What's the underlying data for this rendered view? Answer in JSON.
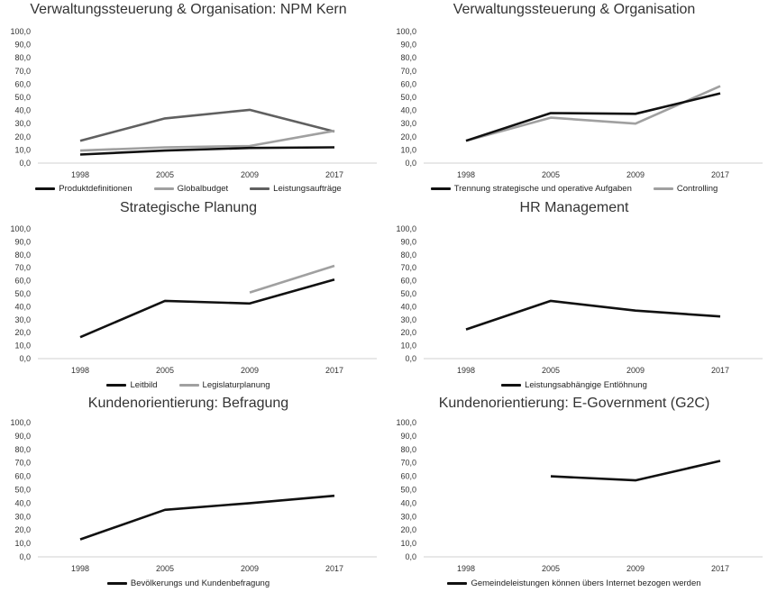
{
  "colors": {
    "black": "#111111",
    "lightgray": "#a0a0a0",
    "darkgray": "#606060",
    "axis": "#d0d0d0"
  },
  "chart_data": [
    {
      "type": "line",
      "title": "Verwaltungssteuerung & Organisation: NPM Kern",
      "categories": [
        "1998",
        "2005",
        "2009",
        "2017"
      ],
      "ylim": [
        0,
        100
      ],
      "yticks": [
        "0,0",
        "10,0",
        "20,0",
        "30,0",
        "40,0",
        "50,0",
        "60,0",
        "70,0",
        "80,0",
        "90,0",
        "100,0"
      ],
      "legend_position": "bottom",
      "series": [
        {
          "name": "Produktdefinitionen",
          "color": "#111111",
          "values": [
            6.5,
            9.5,
            11.5,
            12.0
          ]
        },
        {
          "name": "Globalbudget",
          "color": "#a0a0a0",
          "values": [
            9.5,
            12.0,
            13.0,
            24.5
          ]
        },
        {
          "name": "Leistungsaufträge",
          "color": "#606060",
          "values": [
            17.0,
            34.0,
            40.5,
            24.0
          ]
        }
      ]
    },
    {
      "type": "line",
      "title": "Verwaltungssteuerung  & Organisation",
      "categories": [
        "1998",
        "2005",
        "2009",
        "2017"
      ],
      "ylim": [
        0,
        100
      ],
      "yticks": [
        "0,0",
        "10,0",
        "20,0",
        "30,0",
        "40,0",
        "50,0",
        "60,0",
        "70,0",
        "80,0",
        "90,0",
        "100,0"
      ],
      "legend_position": "bottom",
      "series": [
        {
          "name": "Trennung strategische und operative Aufgaben",
          "color": "#111111",
          "values": [
            17.0,
            38.0,
            37.5,
            53.0
          ]
        },
        {
          "name": "Controlling",
          "color": "#a0a0a0",
          "values": [
            17.0,
            34.5,
            30.0,
            58.5
          ]
        }
      ]
    },
    {
      "type": "line",
      "title": "Strategische Planung",
      "categories": [
        "1998",
        "2005",
        "2009",
        "2017"
      ],
      "ylim": [
        0,
        100
      ],
      "yticks": [
        "0,0",
        "10,0",
        "20,0",
        "30,0",
        "40,0",
        "50,0",
        "60,0",
        "70,0",
        "80,0",
        "90,0",
        "100,0"
      ],
      "legend_position": "bottom",
      "series": [
        {
          "name": "Leitbild",
          "color": "#111111",
          "values": [
            16.5,
            44.5,
            42.5,
            61.0
          ]
        },
        {
          "name": "Legislaturplanung",
          "color": "#a0a0a0",
          "values": [
            null,
            null,
            51.0,
            71.5
          ]
        }
      ]
    },
    {
      "type": "line",
      "title": "HR Management",
      "categories": [
        "1998",
        "2005",
        "2009",
        "2017"
      ],
      "ylim": [
        0,
        100
      ],
      "yticks": [
        "0,0",
        "10,0",
        "20,0",
        "30,0",
        "40,0",
        "50,0",
        "60,0",
        "70,0",
        "80,0",
        "90,0",
        "100,0"
      ],
      "legend_position": "bottom",
      "series": [
        {
          "name": "Leistungsabhängige Entlöhnung",
          "color": "#111111",
          "values": [
            22.5,
            44.5,
            37.0,
            32.5
          ]
        }
      ]
    },
    {
      "type": "line",
      "title": "Kundenorientierung: Befragung",
      "categories": [
        "1998",
        "2005",
        "2009",
        "2017"
      ],
      "ylim": [
        0,
        100
      ],
      "yticks": [
        "0,0",
        "10,0",
        "20,0",
        "30,0",
        "40,0",
        "50,0",
        "60,0",
        "70,0",
        "80,0",
        "90,0",
        "100,0"
      ],
      "legend_position": "bottom",
      "series": [
        {
          "name": "Bevölkerungs und Kundenbefragung",
          "color": "#111111",
          "values": [
            13.0,
            35.0,
            40.0,
            45.5
          ]
        }
      ]
    },
    {
      "type": "line",
      "title": "Kundenorientierung: E-Government (G2C)",
      "categories": [
        "1998",
        "2005",
        "2009",
        "2017"
      ],
      "ylim": [
        0,
        100
      ],
      "yticks": [
        "0,0",
        "10,0",
        "20,0",
        "30,0",
        "40,0",
        "50,0",
        "60,0",
        "70,0",
        "80,0",
        "90,0",
        "100,0"
      ],
      "legend_position": "bottom",
      "series": [
        {
          "name": "Gemeindeleistungen können übers Internet bezogen werden",
          "color": "#111111",
          "values": [
            null,
            60.0,
            57.0,
            71.5
          ]
        }
      ]
    }
  ]
}
